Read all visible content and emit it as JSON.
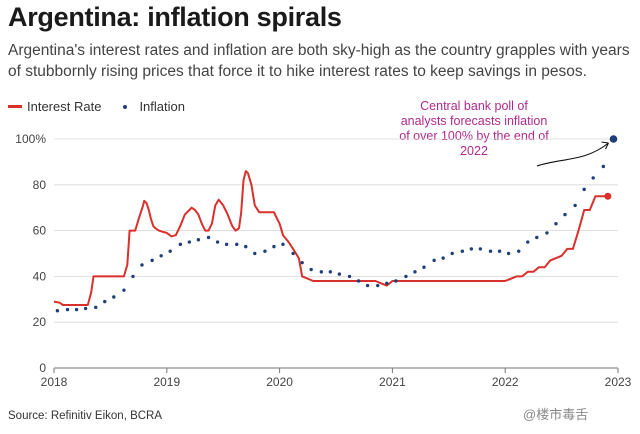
{
  "title": "Argentina: inflation spirals",
  "subtitle": "Argentina's interest rates and inflation are both sky-high as the country grapples with years of stubbornly rising prices that force it to hike interest rates to keep savings in pesos.",
  "legend": [
    {
      "label": "Interest Rate",
      "color": "#d9302c",
      "style": "line"
    },
    {
      "label": "Inflation",
      "color": "#1f3f7a",
      "style": "dots"
    }
  ],
  "annotation": {
    "text": "Central bank poll of analysts forecasts inflation of over 100% by the end of 2022",
    "color": "#b02a8e"
  },
  "source": "Source: Refinitiv Eikon, BCRA",
  "watermark": "@楼市毒舌",
  "chart_data": {
    "type": "line",
    "title": "Argentina: inflation spirals",
    "xlabel": "",
    "ylabel": "",
    "xlim": [
      2018.0,
      2023.0
    ],
    "ylim": [
      0,
      100
    ],
    "grid": true,
    "legend_placement": "top-left",
    "x_ticks": [
      {
        "value": 2018,
        "label": "2018"
      },
      {
        "value": 2019,
        "label": "2019"
      },
      {
        "value": 2020,
        "label": "2020"
      },
      {
        "value": 2021,
        "label": "2021"
      },
      {
        "value": 2022,
        "label": "2022"
      },
      {
        "value": 2023,
        "label": "2023"
      }
    ],
    "y_ticks": [
      {
        "value": 0,
        "label": "0"
      },
      {
        "value": 20,
        "label": "20"
      },
      {
        "value": 40,
        "label": "40"
      },
      {
        "value": 60,
        "label": "60"
      },
      {
        "value": 80,
        "label": "80"
      },
      {
        "value": 100,
        "label": "100%"
      }
    ],
    "series": [
      {
        "name": "Interest Rate",
        "color": "#d9302c",
        "style": "step",
        "x": [
          2018.0,
          2018.05,
          2018.08,
          2018.1,
          2018.3,
          2018.33,
          2018.35,
          2018.62,
          2018.65,
          2018.67,
          2018.72,
          2018.75,
          2018.79,
          2018.8,
          2018.82,
          2018.84,
          2018.86,
          2018.88,
          2018.9,
          2018.93,
          2018.96,
          2019.0,
          2019.04,
          2019.08,
          2019.12,
          2019.16,
          2019.2,
          2019.22,
          2019.25,
          2019.28,
          2019.31,
          2019.34,
          2019.37,
          2019.4,
          2019.43,
          2019.46,
          2019.5,
          2019.54,
          2019.58,
          2019.61,
          2019.64,
          2019.66,
          2019.68,
          2019.7,
          2019.72,
          2019.75,
          2019.78,
          2019.82,
          2019.86,
          2019.9,
          2019.95,
          2019.98,
          2020.0,
          2020.03,
          2020.08,
          2020.12,
          2020.17,
          2020.2,
          2020.3,
          2020.5,
          2020.7,
          2020.85,
          2020.9,
          2020.95,
          2021.0,
          2021.3,
          2021.6,
          2021.9,
          2022.0,
          2022.1,
          2022.15,
          2022.2,
          2022.25,
          2022.3,
          2022.35,
          2022.4,
          2022.5,
          2022.55,
          2022.6,
          2022.65,
          2022.7,
          2022.75,
          2022.8,
          2022.85,
          2022.9
        ],
        "values": [
          29,
          28.5,
          27.5,
          27.5,
          27.5,
          33,
          40,
          40,
          45,
          60,
          60,
          65,
          71,
          73,
          72,
          69,
          65,
          62,
          61,
          60,
          59.5,
          59,
          57.5,
          58,
          62,
          67,
          69,
          70,
          69,
          67,
          63,
          60,
          60,
          63,
          71,
          73.5,
          71,
          67,
          62,
          60,
          61,
          68,
          82,
          86,
          85,
          80,
          71,
          68,
          68,
          68,
          68,
          65,
          63,
          58,
          55,
          52,
          48,
          40,
          38,
          38,
          38,
          38,
          37,
          36,
          38,
          38,
          38,
          38,
          38,
          40,
          40,
          42,
          42,
          44,
          44,
          47,
          49,
          52,
          52,
          60,
          69,
          69,
          75,
          75,
          75
        ]
      },
      {
        "name": "Inflation",
        "color": "#1f3f7a",
        "style": "dots",
        "x": [
          2018.03,
          2018.12,
          2018.2,
          2018.28,
          2018.37,
          2018.45,
          2018.53,
          2018.62,
          2018.7,
          2018.78,
          2018.87,
          2018.95,
          2019.03,
          2019.12,
          2019.2,
          2019.28,
          2019.37,
          2019.45,
          2019.53,
          2019.62,
          2019.7,
          2019.78,
          2019.87,
          2019.95,
          2020.03,
          2020.12,
          2020.2,
          2020.28,
          2020.37,
          2020.45,
          2020.53,
          2020.62,
          2020.7,
          2020.78,
          2020.87,
          2020.95,
          2021.03,
          2021.12,
          2021.2,
          2021.28,
          2021.37,
          2021.45,
          2021.53,
          2021.62,
          2021.7,
          2021.78,
          2021.87,
          2021.95,
          2022.03,
          2022.12,
          2022.2,
          2022.28,
          2022.37,
          2022.45,
          2022.53,
          2022.62,
          2022.7,
          2022.78,
          2022.87
        ],
        "values": [
          25,
          25.5,
          25.5,
          26,
          26.5,
          29,
          31,
          34,
          40,
          45,
          47,
          49,
          51,
          54,
          55,
          56,
          57,
          55,
          54,
          54,
          53,
          50,
          51,
          53,
          54,
          50,
          46,
          43,
          42,
          42,
          41,
          40,
          38,
          36,
          36,
          37,
          38,
          40,
          42,
          44,
          47,
          48,
          50,
          51,
          52,
          52,
          51,
          51,
          50,
          51,
          55,
          57,
          59,
          63,
          67,
          71,
          78,
          83,
          88
        ]
      }
    ],
    "forecast_point": {
      "series": "Inflation",
      "x": 2022.96,
      "value": 100
    },
    "last_rate_point": {
      "series": "Interest Rate",
      "x": 2022.91,
      "value": 75
    }
  }
}
